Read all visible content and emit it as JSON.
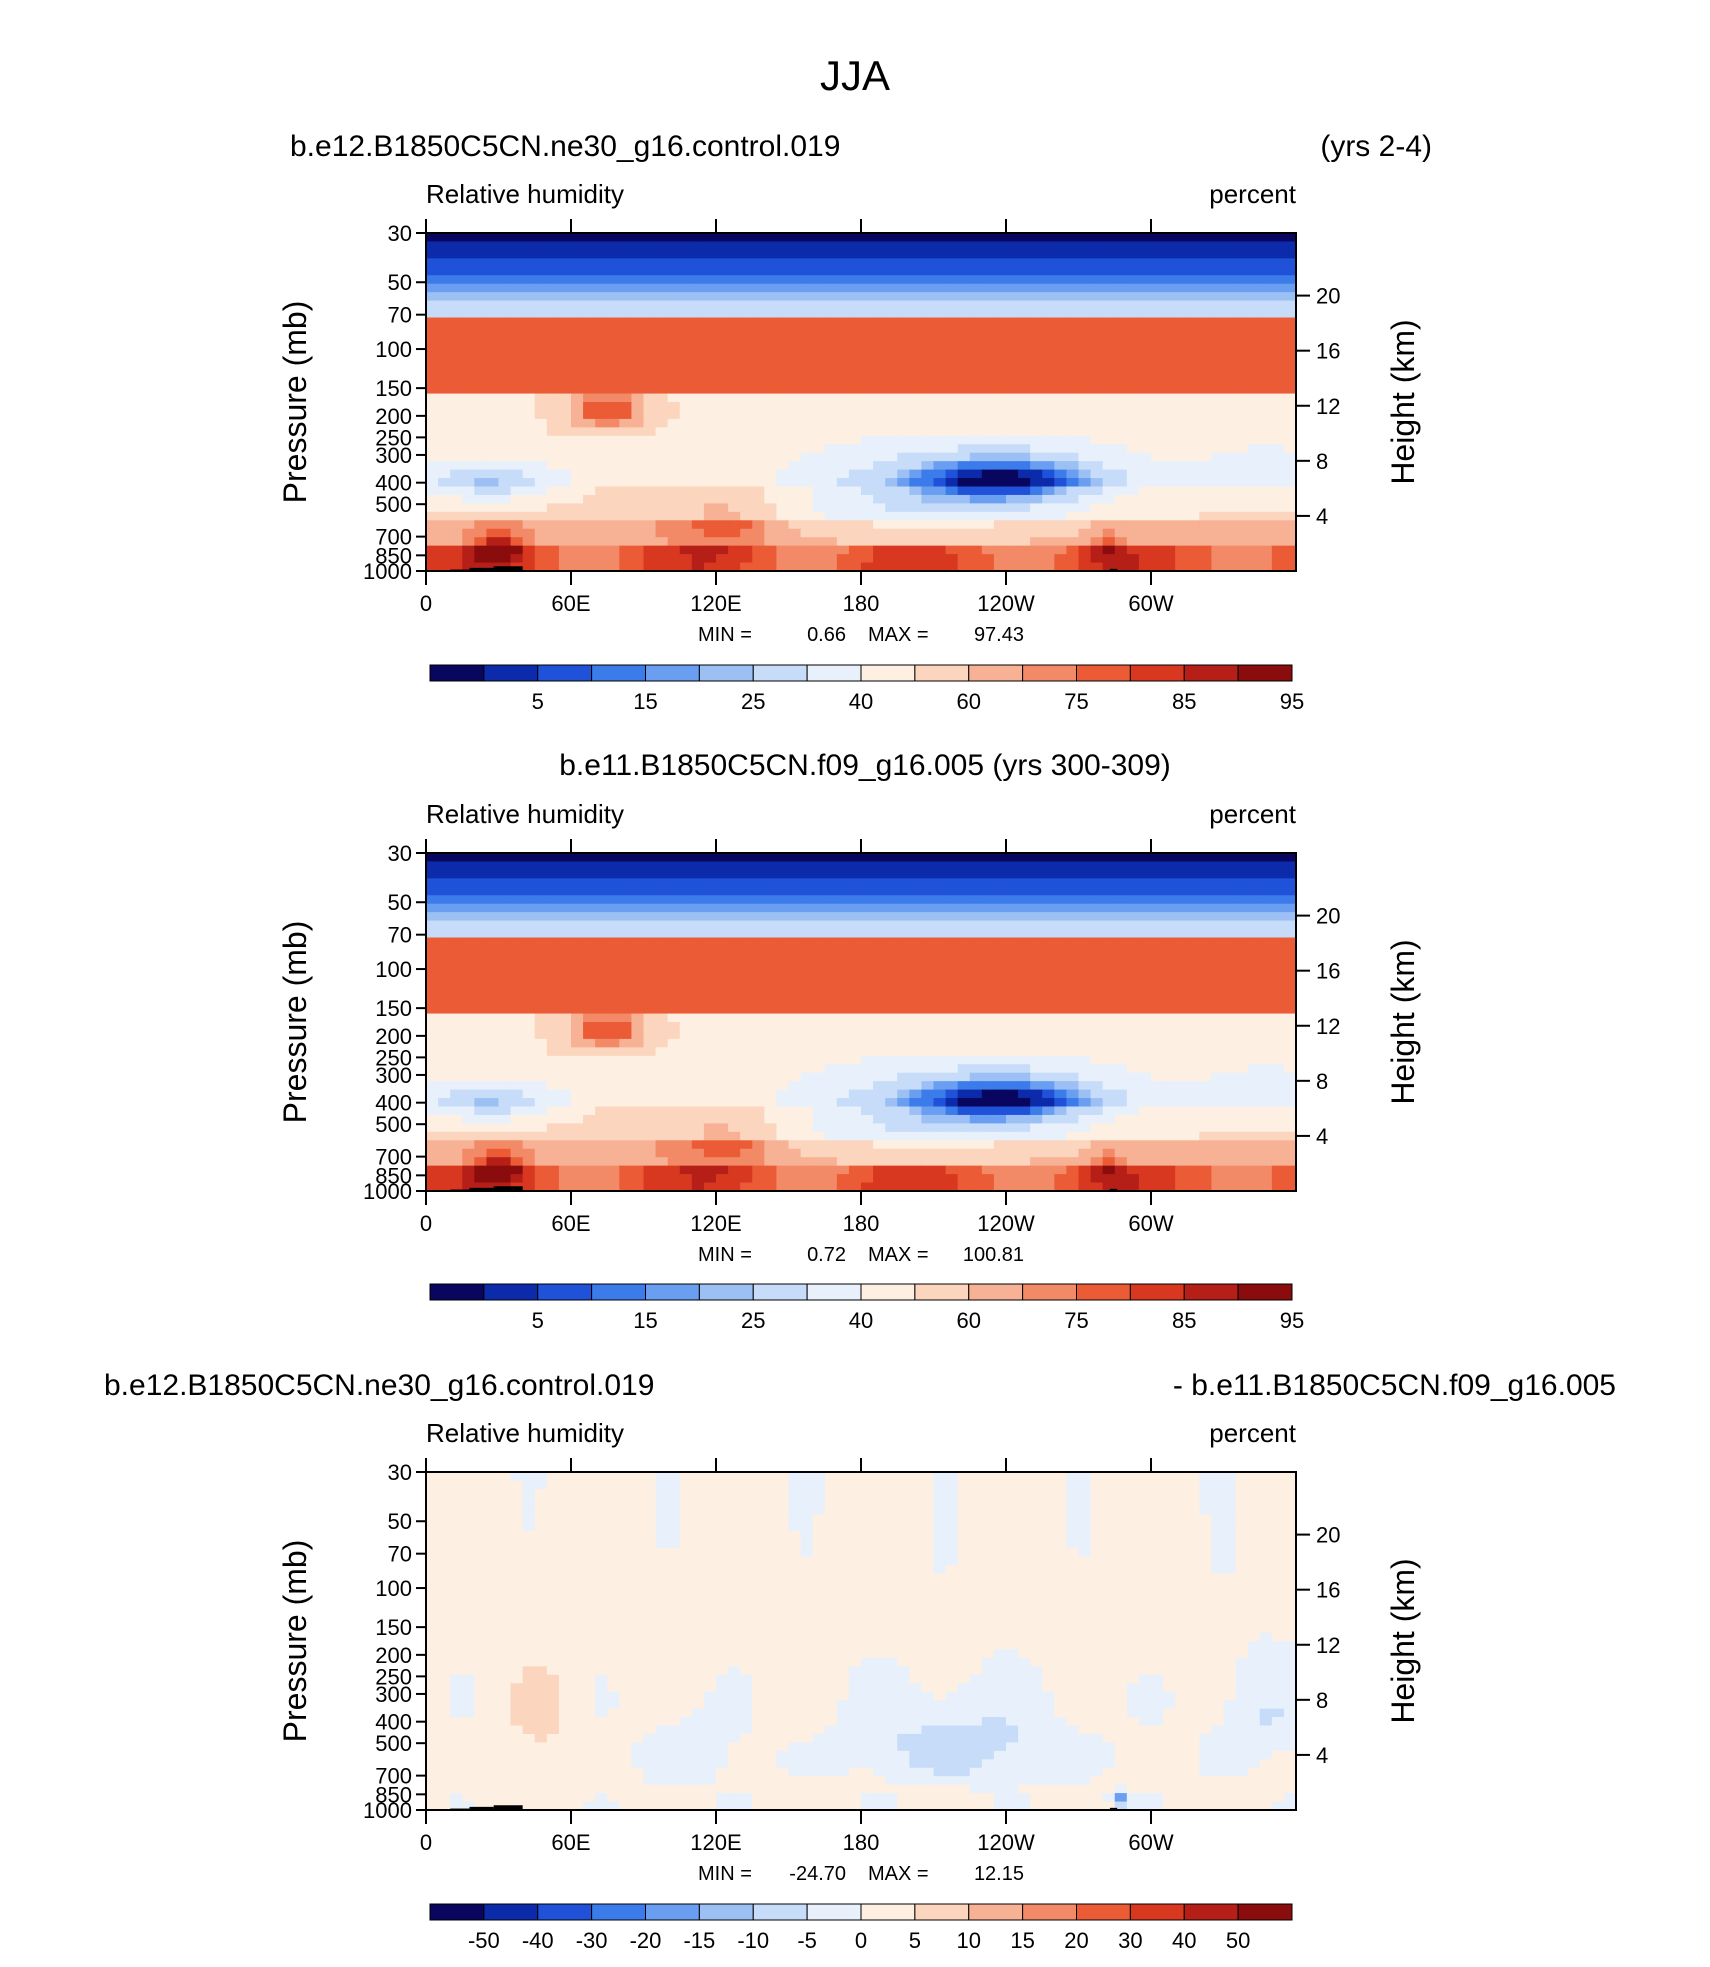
{
  "figure": {
    "title": "JJA"
  },
  "common": {
    "longitude_ticks": [
      "0",
      "60E",
      "120E",
      "180",
      "120W",
      "60W"
    ],
    "longitude_values": [
      0,
      60,
      120,
      180,
      240,
      300
    ],
    "xlim": [
      0,
      360
    ],
    "pressure_ticks": [
      "30",
      "50",
      "70",
      "100",
      "150",
      "200",
      "250",
      "300",
      "400",
      "500",
      "700",
      "850",
      "1000"
    ],
    "pressure_values": [
      30,
      50,
      70,
      100,
      150,
      200,
      250,
      300,
      400,
      500,
      700,
      850,
      1000
    ],
    "height_ticks": [
      "20",
      "16",
      "12",
      "8",
      "4"
    ],
    "height_values": [
      20,
      16,
      12,
      8,
      4
    ],
    "ylabel_left": "Pressure (mb)",
    "ylabel_right": "Height (km)",
    "scale": "log-pressure"
  },
  "chart_data": [
    {
      "type": "heatmap",
      "title_left": "b.e12.B1850C5CN.ne30_g16.control.019",
      "title_right": "(yrs 2-4)",
      "variable": "Relative humidity",
      "units": "percent",
      "min_label": "MIN =",
      "min": "0.66",
      "max_label": "MAX =",
      "max": "97.43",
      "colorbar_labels": [
        "5",
        "15",
        "25",
        "40",
        "60",
        "75",
        "85",
        "95"
      ],
      "colorbar_colors": [
        "#08065e",
        "#0c2bab",
        "#1f52d8",
        "#3b7bea",
        "#6a9ef0",
        "#9cc0f4",
        "#c7dcf8",
        "#e7f0fb",
        "#fdefe1",
        "#fbd5bd",
        "#f7b194",
        "#f28a67",
        "#eb5b36",
        "#d8381f",
        "#b51f17",
        "#8a0c0c"
      ],
      "contour_levels": [
        5,
        10,
        15,
        20,
        25,
        30,
        40,
        50,
        60,
        70,
        75,
        80,
        85,
        90,
        95
      ],
      "pattern": "mean"
    },
    {
      "type": "heatmap",
      "title_center": "b.e11.B1850C5CN.f09_g16.005 (yrs 300-309)",
      "variable": "Relative humidity",
      "units": "percent",
      "min_label": "MIN =",
      "min": "0.72",
      "max_label": "MAX =",
      "max": "100.81",
      "colorbar_labels": [
        "5",
        "15",
        "25",
        "40",
        "60",
        "75",
        "85",
        "95"
      ],
      "colorbar_colors": [
        "#08065e",
        "#0c2bab",
        "#1f52d8",
        "#3b7bea",
        "#6a9ef0",
        "#9cc0f4",
        "#c7dcf8",
        "#e7f0fb",
        "#fdefe1",
        "#fbd5bd",
        "#f7b194",
        "#f28a67",
        "#eb5b36",
        "#d8381f",
        "#b51f17",
        "#8a0c0c"
      ],
      "contour_levels": [
        5,
        10,
        15,
        20,
        25,
        30,
        40,
        50,
        60,
        70,
        75,
        80,
        85,
        90,
        95
      ],
      "pattern": "mean"
    },
    {
      "type": "heatmap",
      "title_left": "b.e12.B1850C5CN.ne30_g16.control.019",
      "title_right": "- b.e11.B1850C5CN.f09_g16.005",
      "variable": "Relative humidity",
      "units": "percent",
      "min_label": "MIN =",
      "min": "-24.70",
      "max_label": "MAX =",
      "max": "12.15",
      "colorbar_labels": [
        "-50",
        "-40",
        "-30",
        "-20",
        "-15",
        "-10",
        "-5",
        "0",
        "5",
        "10",
        "15",
        "20",
        "30",
        "40",
        "50"
      ],
      "colorbar_colors": [
        "#08065e",
        "#0c2bab",
        "#1f52d8",
        "#3b7bea",
        "#6a9ef0",
        "#9cc0f4",
        "#c7dcf8",
        "#e7f0fb",
        "#fdefe1",
        "#fbd5bd",
        "#f7b194",
        "#f28a67",
        "#eb5b36",
        "#d8381f",
        "#b51f17",
        "#8a0c0c"
      ],
      "contour_levels": [
        -50,
        -40,
        -30,
        -20,
        -15,
        -10,
        -5,
        0,
        5,
        10,
        15,
        20,
        30,
        40,
        50
      ],
      "pattern": "difference"
    }
  ]
}
